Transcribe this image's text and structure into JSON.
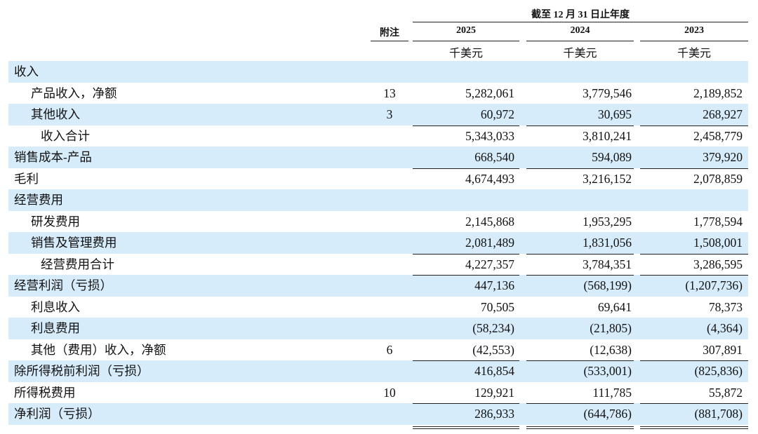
{
  "header": {
    "period": "截至 12 月 31 日止年度",
    "note_label": "附注",
    "years": [
      "2025",
      "2024",
      "2023"
    ],
    "units": [
      "千美元",
      "千美元",
      "千美元"
    ]
  },
  "rows": [
    {
      "label": "收入"
    },
    {
      "label": "产品收入，净额",
      "note": "13",
      "values": [
        "5,282,061",
        "3,779,546",
        "2,189,852"
      ]
    },
    {
      "label": "其他收入",
      "note": "3",
      "values": [
        "60,972",
        "30,695",
        "268,927"
      ]
    },
    {
      "label": "收入合计",
      "values": [
        "5,343,033",
        "3,810,241",
        "2,458,779"
      ]
    },
    {
      "label": "销售成本-产品",
      "values": [
        "668,540",
        "594,089",
        "379,920"
      ]
    },
    {
      "label": "毛利",
      "values": [
        "4,674,493",
        "3,216,152",
        "2,078,859"
      ]
    },
    {
      "label": "经营费用"
    },
    {
      "label": "研发费用",
      "values": [
        "2,145,868",
        "1,953,295",
        "1,778,594"
      ]
    },
    {
      "label": "销售及管理费用",
      "values": [
        "2,081,489",
        "1,831,056",
        "1,508,001"
      ]
    },
    {
      "label": "经营费用合计",
      "values": [
        "4,227,357",
        "3,784,351",
        "3,286,595"
      ]
    },
    {
      "label": "经营利润（亏损）",
      "values": [
        "447,136",
        "(568,199)",
        "(1,207,736)"
      ]
    },
    {
      "label": "利息收入",
      "values": [
        "70,505",
        "69,641",
        "78,373"
      ]
    },
    {
      "label": "利息费用",
      "values": [
        "(58,234)",
        "(21,805)",
        "(4,364)"
      ]
    },
    {
      "label": "其他（费用）收入，净额",
      "note": "6",
      "values": [
        "(42,553)",
        "(12,638)",
        "307,891"
      ]
    },
    {
      "label": "除所得税前利润（亏损）",
      "values": [
        "416,854",
        "(533,001)",
        "(825,836)"
      ]
    },
    {
      "label": "所得税费用",
      "note": "10",
      "values": [
        "129,921",
        "111,785",
        "55,872"
      ]
    },
    {
      "label": "净利润（亏损）",
      "values": [
        "286,933",
        "(644,786)",
        "(881,708)"
      ]
    }
  ]
}
